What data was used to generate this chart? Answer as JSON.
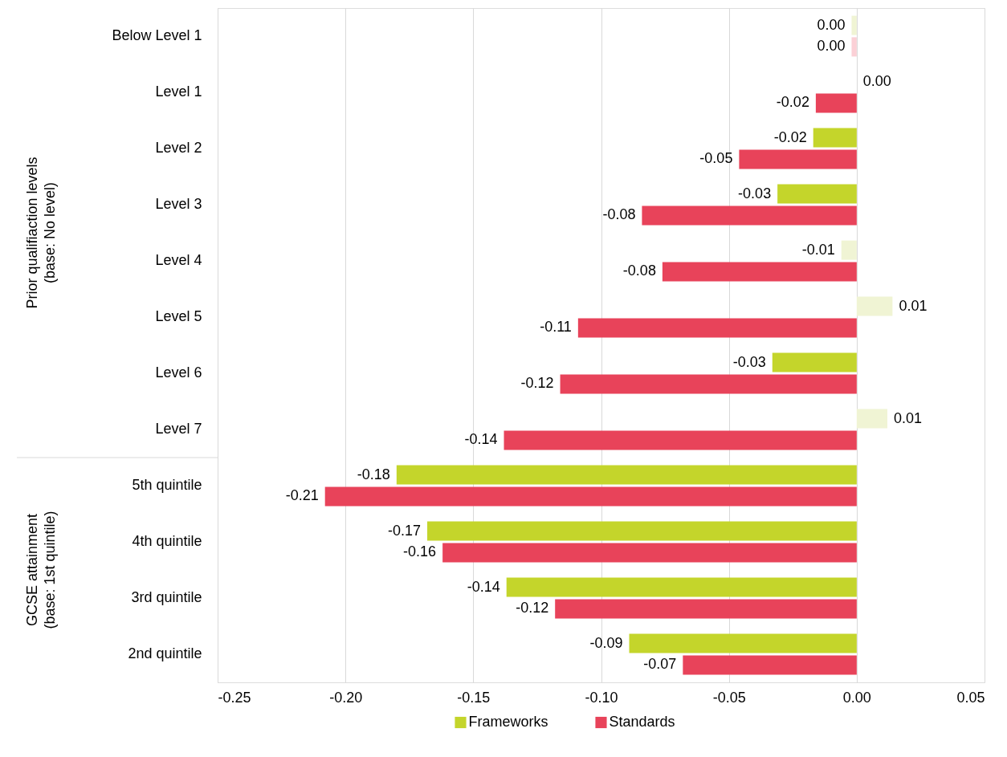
{
  "chart_data": {
    "type": "bar",
    "orientation": "horizontal",
    "categories": [
      "Below Level 1",
      "Level 1",
      "Level 2",
      "Level 3",
      "Level 4",
      "Level 5",
      "Level 6",
      "Level 7",
      "5th quintile",
      "4th quintile",
      "3rd quintile",
      "2nd quintile"
    ],
    "series": [
      {
        "name": "Frameworks",
        "color": "#c4d52b",
        "colors": [
          "#f0f4d4",
          "#f0f4d4",
          "#c4d52b",
          "#c4d52b",
          "#f0f4d4",
          "#f0f4d4",
          "#c4d52b",
          "#f0f4d4",
          "#c4d52b",
          "#c4d52b",
          "#c4d52b",
          "#c4d52b"
        ],
        "values": [
          -0.002,
          0,
          -0.017,
          -0.031,
          -0.006,
          0.014,
          -0.033,
          0.012,
          -0.18,
          -0.168,
          -0.137,
          -0.089
        ],
        "value_labels": [
          "0.00",
          "0.00",
          "-0.02",
          "-0.03",
          "-0.01",
          "0.01",
          "-0.03",
          "0.01",
          "-0.18",
          "-0.17",
          "-0.14",
          "-0.09"
        ]
      },
      {
        "name": "Standards",
        "color": "#e8435a",
        "colors": [
          "#fbd0d6",
          "#e8435a",
          "#e8435a",
          "#e8435a",
          "#e8435a",
          "#e8435a",
          "#e8435a",
          "#e8435a",
          "#e8435a",
          "#e8435a",
          "#e8435a",
          "#e8435a"
        ],
        "values": [
          -0.002,
          -0.016,
          -0.046,
          -0.084,
          -0.076,
          -0.109,
          -0.116,
          -0.138,
          -0.208,
          -0.162,
          -0.118,
          -0.068
        ],
        "value_labels": [
          "0.00",
          "-0.02",
          "-0.05",
          "-0.08",
          "-0.08",
          "-0.11",
          "-0.12",
          "-0.14",
          "-0.21",
          "-0.16",
          "-0.12",
          "-0.07"
        ]
      }
    ],
    "xlim": [
      -0.25,
      0.05
    ],
    "xticks": [
      {
        "value": -0.25,
        "label": "-0.25"
      },
      {
        "value": -0.2,
        "label": "-0.20"
      },
      {
        "value": -0.15,
        "label": "-0.15"
      },
      {
        "value": -0.1,
        "label": "-0.10"
      },
      {
        "value": -0.05,
        "label": "-0.05"
      },
      {
        "value": 0,
        "label": "0.00"
      },
      {
        "value": 0.05,
        "label": "0.05"
      }
    ],
    "grid": "x",
    "legend": "bottom",
    "annotations": [
      "Prior qualifiaction levels\n(base: No level)",
      "GCSE attainment\n(base: 1st quintile)"
    ]
  }
}
